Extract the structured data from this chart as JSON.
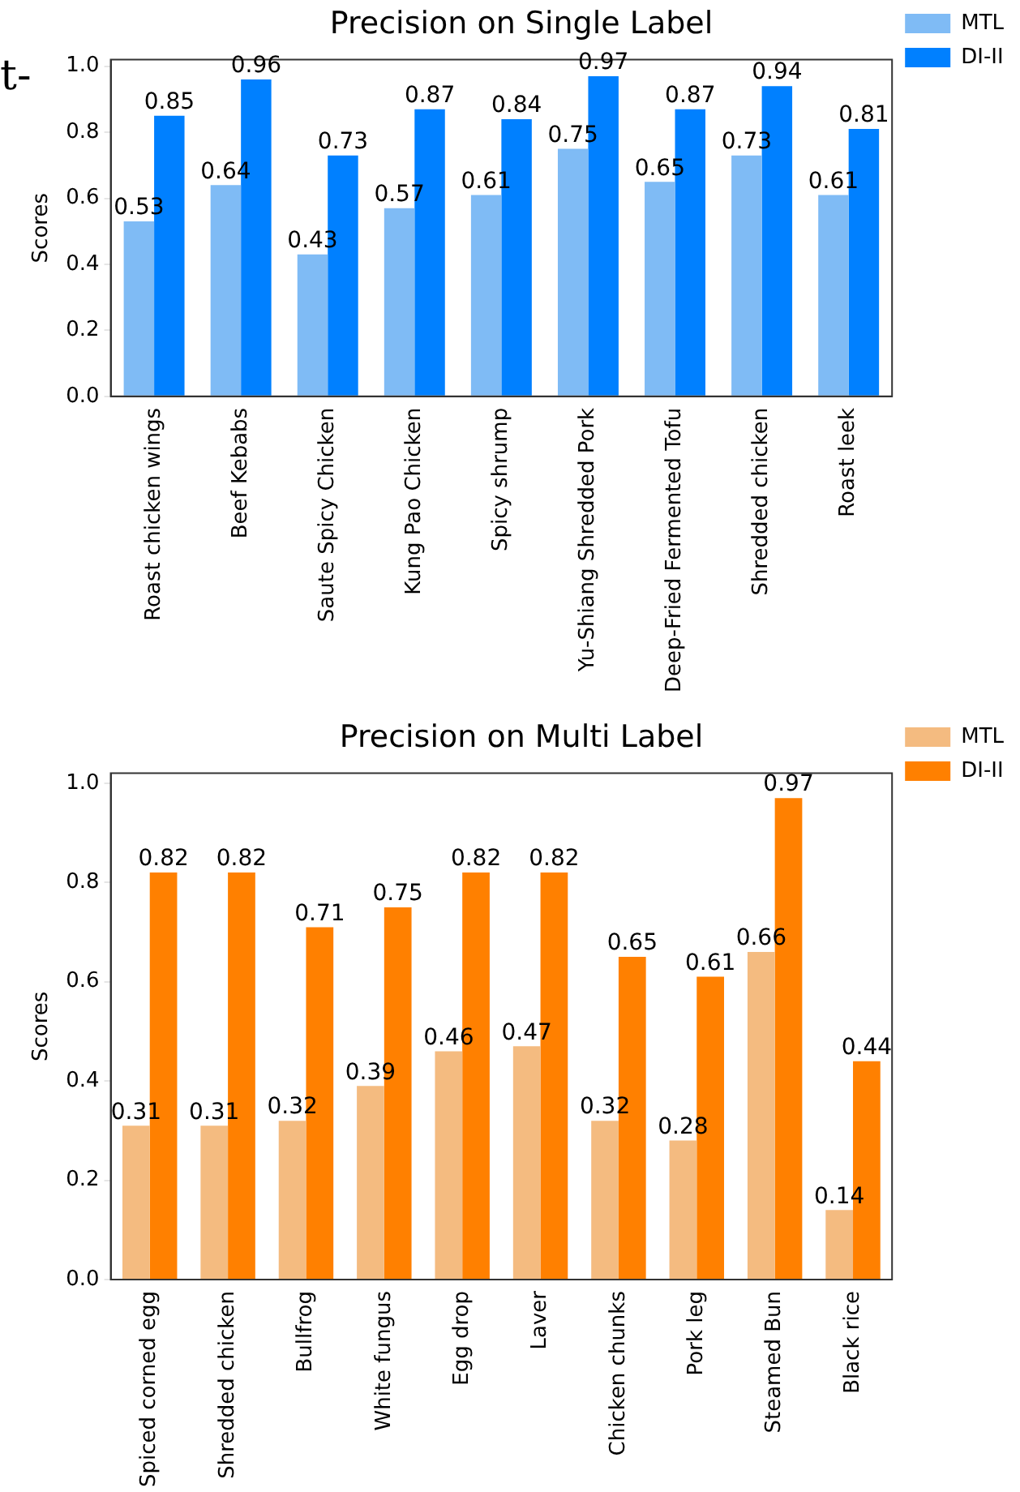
{
  "chart_data": [
    {
      "type": "bar",
      "title": "Precision on Single Label",
      "ylabel": "Scores",
      "categories": [
        "Roast chicken wings",
        "Beef Kebabs",
        "Saute Spicy Chicken",
        "Kung Pao Chicken",
        "Spicy shrump",
        "Yu-Shiang Shredded Pork",
        "Deep-Fried Fermented Tofu",
        "Shredded chicken",
        "Roast leek"
      ],
      "series": [
        {
          "name": "MTL",
          "color": "#7fbbf5",
          "values": [
            0.53,
            0.64,
            0.43,
            0.57,
            0.61,
            0.75,
            0.65,
            0.73,
            0.61
          ]
        },
        {
          "name": "DI-II",
          "color": "#0080ff",
          "values": [
            0.85,
            0.96,
            0.73,
            0.87,
            0.84,
            0.97,
            0.87,
            0.94,
            0.81
          ]
        }
      ],
      "ylim": [
        0,
        1.02
      ],
      "yticks": [
        {
          "value": 0,
          "label": "0.0"
        },
        {
          "value": 0.2,
          "label": "0.2"
        },
        {
          "value": 0.4,
          "label": "0.4"
        },
        {
          "value": 0.6,
          "label": "0.6"
        },
        {
          "value": 0.8,
          "label": "0.8"
        },
        {
          "value": 1,
          "label": "1.0"
        }
      ],
      "data_labels": true,
      "grid": false,
      "legend": "top right",
      "annotations": [
        "t-"
      ]
    },
    {
      "type": "bar",
      "title": "Precision on Multi Label",
      "ylabel": "Scores",
      "categories": [
        "Spiced corned egg",
        "Shredded chicken",
        "Bullfrog",
        "White fungus",
        "Egg drop",
        "Laver",
        "Chicken chunks",
        "Pork leg",
        "Steamed Bun",
        "Black rice"
      ],
      "series": [
        {
          "name": "MTL",
          "color": "#f4bb80",
          "values": [
            0.31,
            0.31,
            0.32,
            0.39,
            0.46,
            0.47,
            0.32,
            0.28,
            0.66,
            0.14
          ]
        },
        {
          "name": "DI-II",
          "color": "#ff8000",
          "values": [
            0.82,
            0.82,
            0.71,
            0.75,
            0.82,
            0.82,
            0.65,
            0.61,
            0.97,
            0.44
          ]
        }
      ],
      "ylim": [
        0,
        1.02
      ],
      "yticks": [
        {
          "value": 0,
          "label": "0.0"
        },
        {
          "value": 0.2,
          "label": "0.2"
        },
        {
          "value": 0.4,
          "label": "0.4"
        },
        {
          "value": 0.6,
          "label": "0.6"
        },
        {
          "value": 0.8,
          "label": "0.8"
        },
        {
          "value": 1,
          "label": "1.0"
        }
      ],
      "data_labels": true,
      "grid": false,
      "legend": "top right"
    }
  ]
}
